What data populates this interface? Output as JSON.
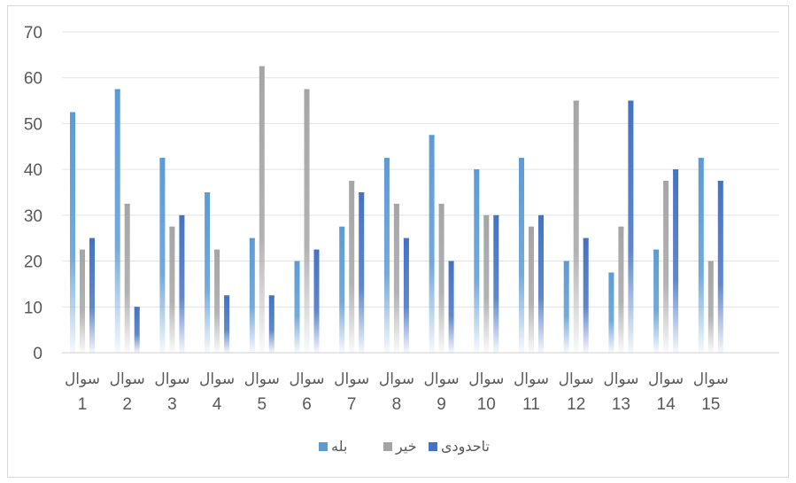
{
  "chart_data": {
    "type": "bar",
    "categories": [
      [
        "سوال",
        "1"
      ],
      [
        "سوال",
        "2"
      ],
      [
        "سوال",
        "3"
      ],
      [
        "سوال",
        "4"
      ],
      [
        "سوال",
        "5"
      ],
      [
        "سوال",
        "6"
      ],
      [
        "سوال",
        "7"
      ],
      [
        "سوال",
        "8"
      ],
      [
        "سوال",
        "9"
      ],
      [
        "سوال",
        "10"
      ],
      [
        "سوال",
        "11"
      ],
      [
        "سوال",
        "12"
      ],
      [
        "سوال",
        "13"
      ],
      [
        "سوال",
        "14"
      ],
      [
        "سوال",
        "15"
      ]
    ],
    "series": [
      {
        "name": "بله",
        "color": "#5b9bd5",
        "values": [
          52.5,
          57.5,
          42.5,
          35,
          25,
          20,
          27.5,
          42.5,
          47.5,
          40,
          42.5,
          20,
          17.5,
          22.5,
          42.5
        ]
      },
      {
        "name": "خیر",
        "color": "#a5a5a5",
        "values": [
          22.5,
          32.5,
          27.5,
          22.5,
          62.5,
          57.5,
          37.5,
          32.5,
          32.5,
          30,
          27.5,
          55,
          27.5,
          37.5,
          20
        ]
      },
      {
        "name": "تاحدودی",
        "color": "#4472c4",
        "values": [
          25,
          10,
          30,
          12.5,
          12.5,
          22.5,
          35,
          25,
          20,
          30,
          30,
          25,
          55,
          40,
          37.5
        ]
      }
    ],
    "yticks": [
      0,
      10,
      20,
      30,
      40,
      50,
      60,
      70
    ],
    "ylim": [
      0,
      70
    ],
    "grid": true,
    "legend": "bottom"
  }
}
